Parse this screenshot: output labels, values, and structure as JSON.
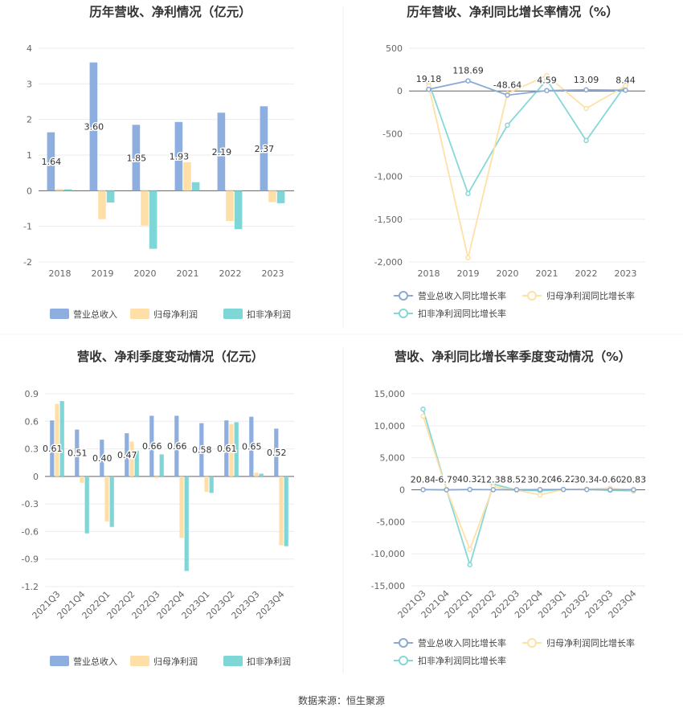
{
  "source": "数据来源：恒生聚源",
  "colors": {
    "blue": "#8DAEDF",
    "orange": "#FFDFA8",
    "teal": "#7ED6D6",
    "line_blue": "#8AA9D3",
    "line_orange": "#FFE0A6",
    "line_teal": "#86D8D8"
  },
  "chart_data": [
    {
      "type": "bar",
      "title": "历年营收、净利情况（亿元）",
      "categories": [
        "2018",
        "2019",
        "2020",
        "2021",
        "2022",
        "2023"
      ],
      "series": [
        {
          "name": "营业总收入",
          "values": [
            1.64,
            3.6,
            1.85,
            1.93,
            2.19,
            2.37
          ]
        },
        {
          "name": "归母净利润",
          "values": [
            0.05,
            -0.8,
            -0.98,
            0.8,
            -0.85,
            -0.32
          ]
        },
        {
          "name": "扣非净利润",
          "values": [
            0.04,
            -0.33,
            -1.63,
            0.24,
            -1.08,
            -0.35
          ]
        }
      ],
      "data_labels": [
        "1.64",
        "3.60",
        "1.85",
        "1.93",
        "2.19",
        "2.37"
      ],
      "yticks": [
        "4",
        "3",
        "2",
        "1",
        "0",
        "-1",
        "-2"
      ],
      "ylim": [
        -2,
        4
      ],
      "legend_position": "bottom"
    },
    {
      "type": "line",
      "title": "历年营收、净利同比增长率情况（%）",
      "categories": [
        "2018",
        "2019",
        "2020",
        "2021",
        "2022",
        "2023"
      ],
      "series": [
        {
          "name": "营业总收入同比增长率",
          "values": [
            19.18,
            118.69,
            -48.64,
            4.59,
            13.09,
            8.44
          ]
        },
        {
          "name": "归母净利润同比增长率",
          "values": [
            60,
            -1950,
            -30,
            180,
            -205,
            60
          ]
        },
        {
          "name": "扣非净利润同比增长率",
          "values": [
            100,
            -1200,
            -400,
            130,
            -580,
            70
          ]
        }
      ],
      "data_labels": [
        "19.18",
        "118.69",
        "-48.64",
        "4.59",
        "13.09",
        "8.44"
      ],
      "yticks": [
        "500",
        "0",
        "-500",
        "-1,000",
        "-1,500",
        "-2,000"
      ],
      "ylim": [
        -2000,
        500
      ],
      "legend_position": "bottom"
    },
    {
      "type": "bar",
      "title": "营收、净利季度变动情况（亿元）",
      "categories": [
        "2021Q3",
        "2021Q4",
        "2022Q1",
        "2022Q2",
        "2022Q3",
        "2022Q4",
        "2023Q1",
        "2023Q2",
        "2023Q3",
        "2023Q4"
      ],
      "series": [
        {
          "name": "营业总收入",
          "values": [
            0.61,
            0.51,
            0.4,
            0.47,
            0.66,
            0.66,
            0.58,
            0.61,
            0.65,
            0.52
          ]
        },
        {
          "name": "归母净利润",
          "values": [
            0.79,
            -0.07,
            -0.49,
            0.38,
            -0.02,
            -0.67,
            -0.17,
            0.57,
            0.04,
            -0.75
          ]
        },
        {
          "name": "扣非净利润",
          "values": [
            0.82,
            -0.62,
            -0.55,
            0.28,
            0.24,
            -1.03,
            -0.18,
            0.59,
            0.03,
            -0.76
          ]
        }
      ],
      "data_labels": [
        "0.61",
        "0.51",
        "0.40",
        "0.47",
        "0.66",
        "0.66",
        "0.58",
        "0.61",
        "0.65",
        "0.52"
      ],
      "yticks": [
        "0.9",
        "0.6",
        "0.3",
        "0",
        "-0.3",
        "-0.6",
        "-0.9",
        "-1.2"
      ],
      "ylim": [
        -1.2,
        0.9
      ],
      "legend_position": "bottom"
    },
    {
      "type": "line",
      "title": "营收、净利同比增长率季度变动情况（%）",
      "categories": [
        "2021Q3",
        "2021Q4",
        "2022Q1",
        "2022Q2",
        "2022Q3",
        "2022Q4",
        "2023Q1",
        "2023Q2",
        "2023Q3",
        "2023Q4"
      ],
      "series": [
        {
          "name": "营业总收入同比增长率",
          "values": [
            20.84,
            -6.79,
            40.32,
            12.38,
            8.52,
            30.2,
            46.22,
            30.34,
            -0.6,
            20.83
          ]
        },
        {
          "name": "归母净利润同比增长率",
          "values": [
            11500,
            50,
            -9300,
            500,
            -60,
            -800,
            50,
            120,
            250,
            -80
          ]
        },
        {
          "name": "扣非净利润同比增长率",
          "values": [
            12600,
            50,
            -11700,
            900,
            -50,
            -150,
            40,
            60,
            -80,
            -150
          ]
        }
      ],
      "data_labels": [
        "20.84",
        "-6.79",
        "40.32",
        "12.38",
        "8.52",
        "30.20",
        "46.22",
        "30.34",
        "-0.60",
        "20.83"
      ],
      "yticks": [
        "15,000",
        "10,000",
        "5,000",
        "0",
        "-5,000",
        "-10,000",
        "-15,000"
      ],
      "ylim": [
        -15000,
        15000
      ],
      "legend_position": "bottom"
    }
  ]
}
